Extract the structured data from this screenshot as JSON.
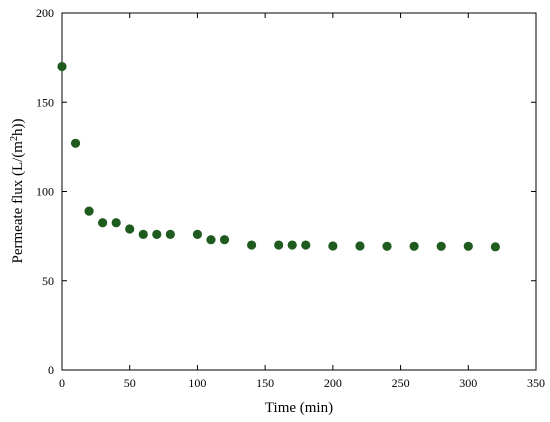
{
  "chart_data": {
    "type": "scatter",
    "title": "",
    "xlabel": "Time (min)",
    "ylabel_main": "Permeate flux (L/(m",
    "ylabel_sup": "2",
    "ylabel_tail": "h))",
    "xlim": [
      0,
      350
    ],
    "ylim": [
      0,
      200
    ],
    "xticks": [
      0,
      50,
      100,
      150,
      200,
      250,
      300,
      350
    ],
    "yticks": [
      0,
      50,
      100,
      150,
      200
    ],
    "xtick_labels": [
      "0",
      "50",
      "100",
      "150",
      "200",
      "250",
      "300",
      "350"
    ],
    "ytick_labels": [
      "0",
      "50",
      "100",
      "150",
      "200"
    ],
    "grid": false,
    "marker_color": "#1f5a1f",
    "series": [
      {
        "x": [
          0,
          10,
          20,
          30,
          40,
          50,
          60,
          70,
          80,
          100,
          110,
          120,
          140,
          160,
          170,
          180,
          200,
          220,
          240,
          260,
          280,
          300,
          320
        ],
        "y": [
          170,
          127,
          89,
          82.5,
          82.5,
          79,
          76,
          76,
          76,
          76,
          73,
          73,
          70,
          70,
          70,
          70,
          69.5,
          69.5,
          69.3,
          69.3,
          69.3,
          69.3,
          69
        ]
      }
    ]
  }
}
